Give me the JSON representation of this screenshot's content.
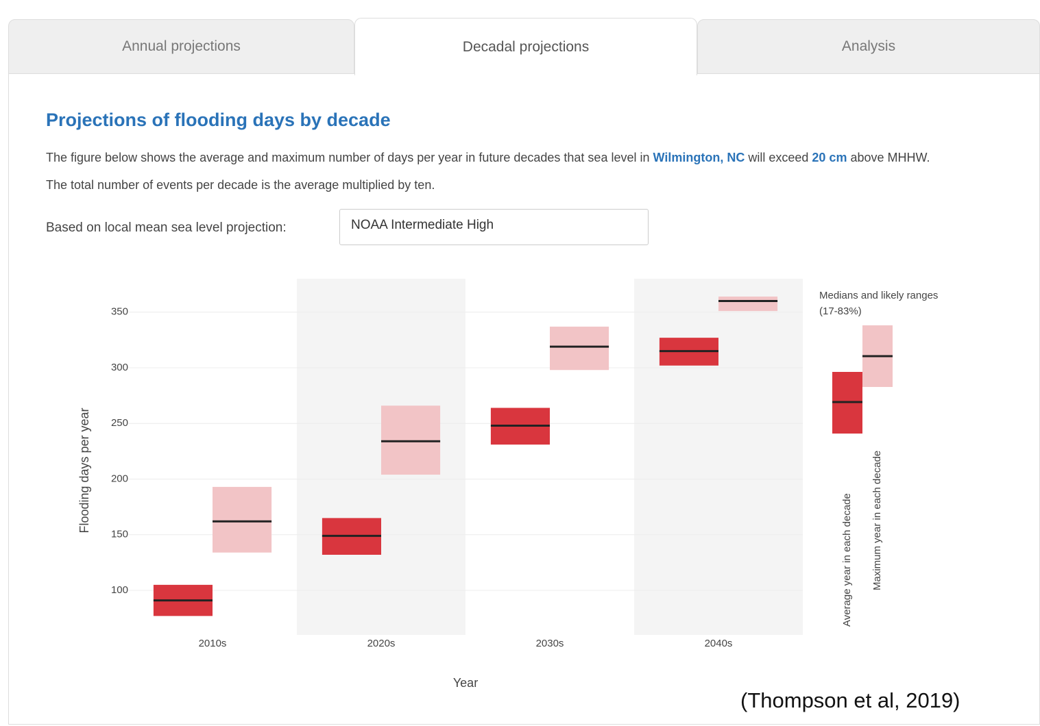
{
  "tabs": [
    "Annual projections",
    "Decadal projections",
    "Analysis"
  ],
  "heading": "Projections of flooding days by decade",
  "description": {
    "intro": "The figure below shows the average and maximum number of days per year in future decades that sea level in",
    "location": "Wilmington, NC",
    "middle": "will exceed",
    "threshold": "20 cm",
    "end": "above MHHW. The total number of events per decade is the average multiplied by ten."
  },
  "projection": {
    "label": "Based on local mean sea level projection:",
    "value": "NOAA Intermediate High"
  },
  "chart_data": {
    "type": "range",
    "categories": [
      "2010s",
      "2020s",
      "2030s",
      "2040s"
    ],
    "series": [
      {
        "name": "Average year in each decade",
        "color": "#d9363e",
        "low": [
          77,
          132,
          231,
          302
        ],
        "median": [
          91,
          149,
          248,
          315
        ],
        "high": [
          105,
          165,
          264,
          327
        ]
      },
      {
        "name": "Maximum year in each decade",
        "color": "#f2c4c6",
        "low": [
          134,
          204,
          298,
          351
        ],
        "median": [
          162,
          234,
          319,
          360
        ],
        "high": [
          193,
          266,
          337,
          364
        ]
      }
    ],
    "ylim": [
      60,
      380
    ],
    "yticks": [
      100,
      150,
      200,
      250,
      300,
      350
    ],
    "grid": true,
    "ylabel": "Flooding days per year",
    "xlabel": "Year",
    "legend_title": "Medians and likely ranges (17-83%)"
  },
  "citation": "(Thompson et al, 2019)"
}
